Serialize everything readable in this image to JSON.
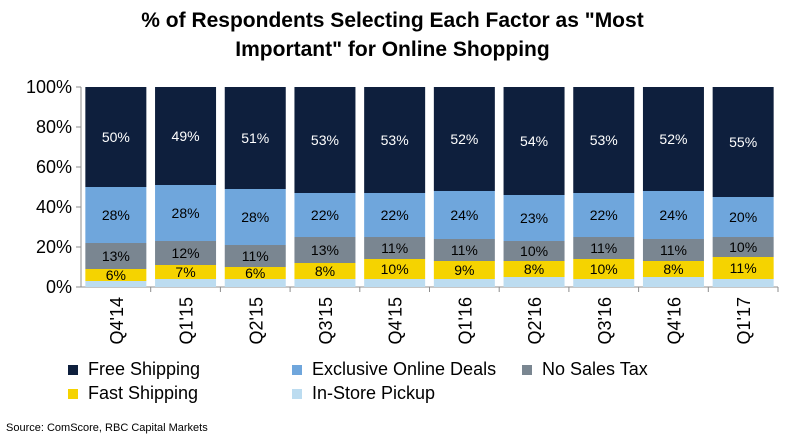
{
  "title": "% of Respondents Selecting Each Factor as \"Most\nImportant\" for Online Shopping",
  "source": "Source: ComScore, RBC Capital Markets",
  "colors": {
    "free_shipping": "#0e1f3d",
    "exclusive_online_deals": "#6fa6dc",
    "no_sales_tax": "#7a8691",
    "fast_shipping": "#f5d300",
    "in_store_pickup": "#bcdcf0"
  },
  "chart_data": {
    "type": "bar",
    "stacked": true,
    "title": "% of Respondents Selecting Each Factor as \"Most Important\" for Online Shopping",
    "categories": [
      "Q4'14",
      "Q1'15",
      "Q2'15",
      "Q3'15",
      "Q4'15",
      "Q1'16",
      "Q2'16",
      "Q3'16",
      "Q4'16",
      "Q1'17"
    ],
    "series": [
      {
        "name": "In-Store Pickup",
        "color": "#bcdcf0",
        "values": [
          3,
          4,
          4,
          4,
          4,
          4,
          5,
          4,
          5,
          4
        ],
        "labeled": false
      },
      {
        "name": "Fast Shipping",
        "color": "#f5d300",
        "values": [
          6,
          7,
          6,
          8,
          10,
          9,
          8,
          10,
          8,
          11
        ],
        "labeled": true
      },
      {
        "name": "No Sales Tax",
        "color": "#7a8691",
        "values": [
          13,
          12,
          11,
          13,
          11,
          11,
          10,
          11,
          11,
          10
        ],
        "labeled": true
      },
      {
        "name": "Exclusive Online Deals",
        "color": "#6fa6dc",
        "values": [
          28,
          28,
          28,
          22,
          22,
          24,
          23,
          22,
          24,
          20
        ],
        "labeled": true
      },
      {
        "name": "Free Shipping",
        "color": "#0e1f3d",
        "values": [
          50,
          49,
          51,
          53,
          53,
          52,
          54,
          53,
          52,
          55
        ],
        "labeled": true
      }
    ],
    "yticks": [
      "0%",
      "20%",
      "40%",
      "60%",
      "80%",
      "100%"
    ],
    "ylim": [
      0,
      100
    ],
    "grid": false,
    "legend_position": "bottom",
    "legend": [
      {
        "name": "Free Shipping",
        "color": "#0e1f3d"
      },
      {
        "name": "Exclusive Online Deals",
        "color": "#6fa6dc"
      },
      {
        "name": "No Sales Tax",
        "color": "#7a8691"
      },
      {
        "name": "Fast Shipping",
        "color": "#f5d300"
      },
      {
        "name": "In-Store Pickup",
        "color": "#bcdcf0"
      }
    ]
  }
}
